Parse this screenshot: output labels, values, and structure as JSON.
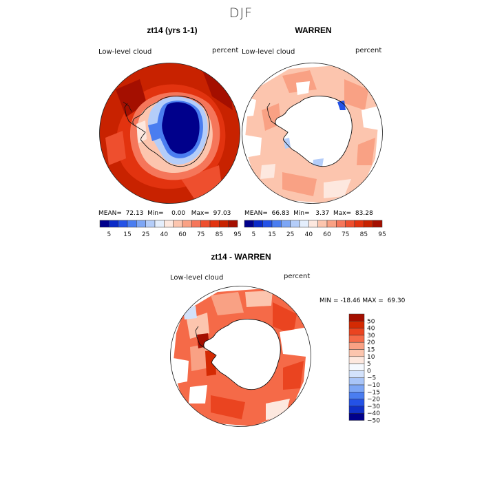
{
  "figure": {
    "title": "DJF"
  },
  "colors": {
    "scale": [
      "#00008b",
      "#0a2ac8",
      "#2452e6",
      "#4a7df0",
      "#7da6f5",
      "#b4cdf9",
      "#e4eefc",
      "#fde8df",
      "#fcc5ae",
      "#f9a184",
      "#f5765a",
      "#ee4f2e",
      "#e2330f",
      "#c82200",
      "#a40f00"
    ],
    "diff_scale": [
      "#00008b",
      "#1030c8",
      "#2452e6",
      "#4a7df0",
      "#7da6f5",
      "#a9c5f8",
      "#d3e2fb",
      "#f5f9ff",
      "#fde8df",
      "#fcc5ae",
      "#f9a184",
      "#f56a48",
      "#ea4420",
      "#d42a03",
      "#a40f00"
    ]
  },
  "panels": {
    "top_left": {
      "title": "zt14 (yrs 1-1)",
      "variable": "Low-level cloud",
      "units": "percent",
      "mean_label": "MEAN=",
      "mean": "72.13",
      "min_label": "Min=",
      "min": "0.00",
      "max_label": "Max=",
      "max": "97.03"
    },
    "top_right": {
      "title": "WARREN",
      "variable": "Low-level cloud",
      "units": "percent",
      "mean_label": "MEAN=",
      "mean": "66.83",
      "min_label": "Min=",
      "min": "3.37",
      "max_label": "Max=",
      "max": "83.28"
    },
    "bottom": {
      "title": "zt14 - WARREN",
      "variable": "Low-level cloud",
      "units": "percent",
      "min_label": "MIN =",
      "min": "-18.46",
      "max_label": "MAX =",
      "max": "69.30"
    }
  },
  "colorbar_top": {
    "labels": [
      "5",
      "15",
      "25",
      "40",
      "60",
      "75",
      "85",
      "95"
    ]
  },
  "colorbar_diff": {
    "labels": [
      "50",
      "40",
      "30",
      "20",
      "15",
      "10",
      "5",
      "0",
      "−5",
      "−10",
      "−15",
      "−20",
      "−30",
      "−40",
      "−50"
    ]
  }
}
